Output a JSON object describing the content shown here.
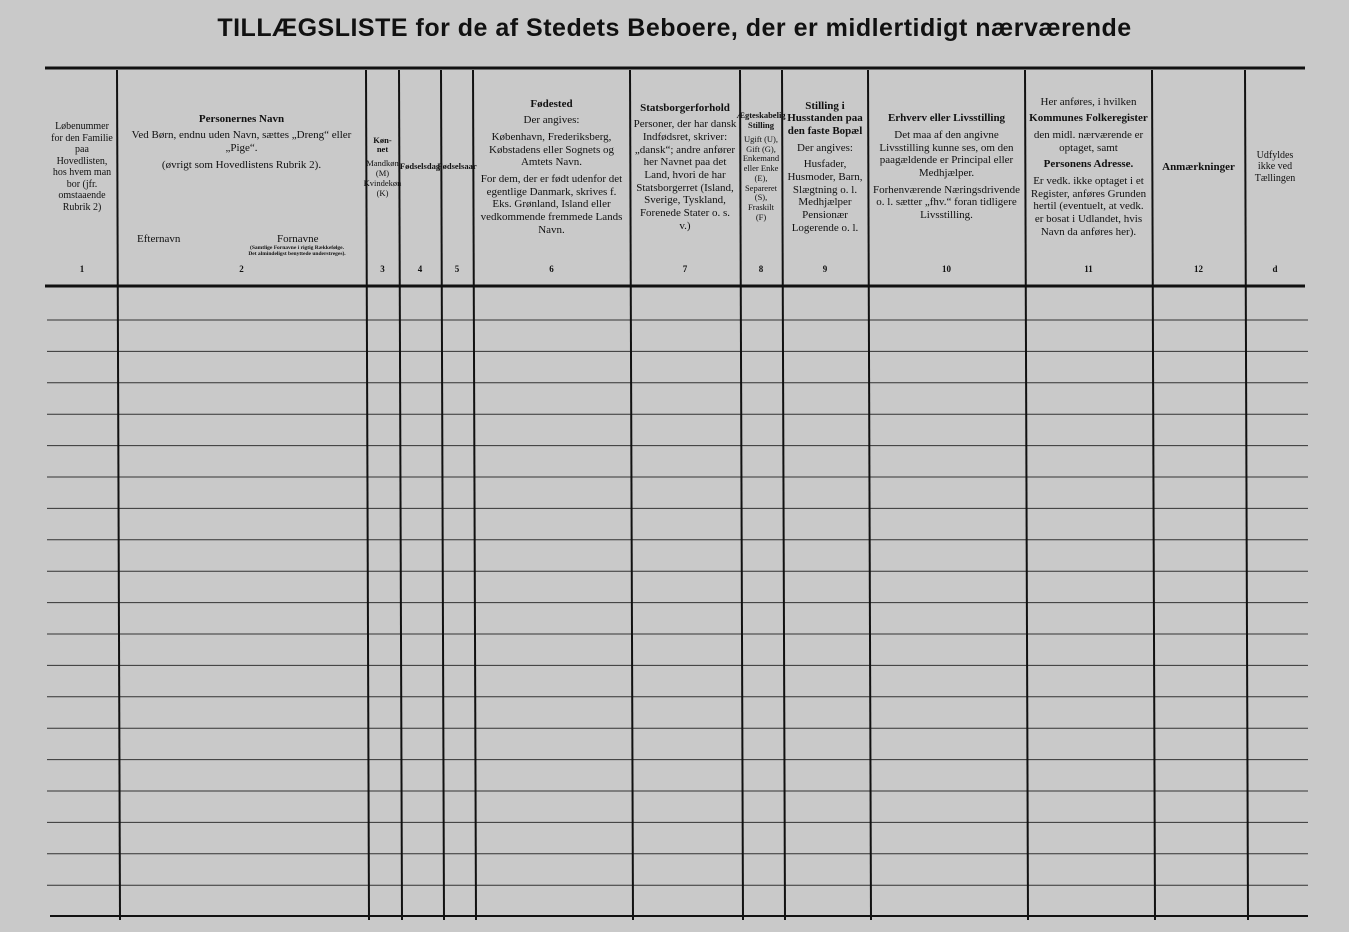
{
  "title": "TILLÆGSLISTE for de af Stedets Beboere, der er midlertidigt nærværende",
  "columns": [
    {
      "text": [
        "Løbenummer for den Familie paa Hovedlisten, hos hvem man bor (jfr. omstaaende Rubrik 2)"
      ],
      "number": 1
    },
    {
      "heading": "Personernes Navn",
      "text": [
        "Ved Børn, endnu uden Navn, sættes „Dreng“ eller „Pige“.",
        "(øvrigt som Hovedlistens Rubrik 2)."
      ],
      "subheads": [
        "Efternavn",
        "Fornavne"
      ],
      "note": "(Samtlige Fornavne i rigtig Rækkefølge. Det almindeligst benyttede understreges).",
      "number": 2
    },
    {
      "heading": "Køn-net",
      "text": [
        "Mandkøn (M) Kvindekøn (K)"
      ],
      "number": 3
    },
    {
      "heading": "Fødselsdag",
      "number": 4
    },
    {
      "heading": "Fødselsaar",
      "number": 5
    },
    {
      "heading": "Fødested",
      "text": [
        "Der angives:",
        "København, Frederiksberg, Købstadens eller Sognets og Amtets Navn.",
        "For dem, der er født udenfor det egentlige Danmark, skrives f. Eks. Grønland, Island eller vedkommende fremmede Lands Navn."
      ],
      "number": 6
    },
    {
      "heading": "Statsborgerforhold",
      "text": [
        "Personer, der har dansk Indfødsret, skriver: „dansk“; andre anfører her Navnet paa det Land, hvori de har Statsborgerret (Island, Sverige, Tyskland, Forenede Stater o. s. v.)"
      ],
      "number": 7
    },
    {
      "heading": "Ægteskabelig Stilling",
      "text": [
        "Ugift (U), Gift (G), Enkemand eller Enke (E), Separeret (S), Fraskilt (F)"
      ],
      "number": 8
    },
    {
      "heading": "Stilling i Husstanden paa den faste Bopæl",
      "text": [
        "Der angives:",
        "Husfader, Husmoder, Barn, Slægtning o. l. Medhjælper Pensionær Logerende o. l."
      ],
      "number": 9
    },
    {
      "heading": "Erhverv eller Livsstilling",
      "text": [
        "Det maa af den angivne Livsstilling kunne ses, om den paagældende er Principal eller Medhjælper.",
        "Forhenværende Næringsdrivende o. l. sætter „fhv.“ foran tidligere Livsstilling."
      ],
      "number": 10
    },
    {
      "text": [
        "Her anføres, i hvilken"
      ],
      "heading": "Kommunes Folkeregister",
      "text2": [
        "den midl. nærværende er optaget, samt"
      ],
      "heading2": "Personens Adresse.",
      "text3": [
        "Er vedk. ikke optaget i et Register, anføres Grunden hertil (eventuelt, at vedk. er bosat i Udlandet, hvis Navn da anføres her)."
      ],
      "number": 11
    },
    {
      "heading": "Anmærkninger",
      "number": 12
    },
    {
      "text": [
        "Udfyldes ikke ved Tællingen"
      ],
      "number": "d"
    }
  ]
}
